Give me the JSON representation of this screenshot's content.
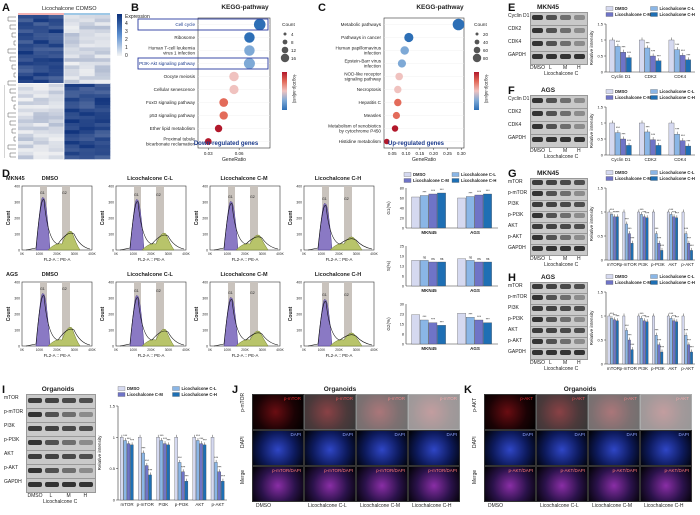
{
  "panels": {
    "A": {
      "letter": "A",
      "groups": [
        "Licochalcone C",
        "DMSO"
      ],
      "scale_label": "Expression",
      "scale_ticks": [
        "4",
        "3",
        "2",
        "1",
        "0"
      ]
    },
    "B": {
      "letter": "B",
      "title": "KEGG-pathway",
      "xlabel": "GeneRatio",
      "caption": "Down-regulated genes",
      "terms": [
        "Cell cycle",
        "Ribosome",
        "Human T-cell leukemia virus 1 infection",
        "PI3K-Akt signaling pathway",
        "Oocyte meiosis",
        "Cellular senescence",
        "FoxO signaling pathway",
        "p53 signaling pathway",
        "Ether lipid metabolism",
        "Proximal tubule bicarbonate reclamation"
      ],
      "count_label": "Count",
      "count_ticks": [
        "4",
        "8",
        "12",
        "16"
      ],
      "p_label": "-log10(p.adjust)"
    },
    "C": {
      "letter": "C",
      "title": "KEGG-pathway",
      "xlabel": "GeneRatio",
      "caption": "Up-regulated genes",
      "terms": [
        "Metabolic pathways",
        "Pathways in cancer",
        "Human papillomavirus infection",
        "Epstein-Barr virus infection",
        "NOD-like receptor signaling pathway",
        "Necroptosis",
        "Hepatitis C",
        "Measles",
        "Metabolism of xenobiotics by cytochrome P450",
        "Histidine metabolism"
      ],
      "count_label": "Count",
      "count_ticks": [
        "20",
        "40",
        "60",
        "80"
      ],
      "p_label": "-log10(p.adjust)"
    },
    "D": {
      "letter": "D",
      "conditions": [
        "DMSO",
        "Licochalcone C-L",
        "Licochalcone C-M",
        "Licochalcone C-H"
      ],
      "cells": [
        "MKN45",
        "AGS"
      ],
      "xlabel": "FL2-A :: PE-A",
      "ylabel": "Count",
      "bar_ylabels": [
        "G1(%)",
        "S(%)",
        "G2(%)"
      ]
    },
    "E": {
      "letter": "E",
      "cell": "MKN45",
      "rows": [
        "Cyclin D1",
        "CDK2",
        "CDK4",
        "GAPDH"
      ],
      "lanes": [
        "DMSO",
        "L",
        "M",
        "H"
      ],
      "treatment": "Licochalcone C",
      "ylabel": "Relative intensity"
    },
    "F": {
      "letter": "F",
      "cell": "AGS",
      "rows": [
        "Cyclin D1",
        "CDK2",
        "CDK4",
        "GAPDH"
      ],
      "lanes": [
        "DMSO",
        "L",
        "M",
        "H"
      ],
      "treatment": "Licochalcone C",
      "ylabel": "Relative intensity"
    },
    "G": {
      "letter": "G",
      "cell": "MKN45",
      "rows": [
        "mTOR",
        "p-mTOR",
        "PI3K",
        "p-PI3K",
        "AKT",
        "p-AKT",
        "GAPDH"
      ],
      "lanes": [
        "DMSO",
        "L",
        "M",
        "H"
      ],
      "treatment": "Licochalcone C",
      "ylabel": "Relative intensity"
    },
    "H": {
      "letter": "H",
      "cell": "AGS",
      "rows": [
        "mTOR",
        "p-mTOR",
        "PI3K",
        "p-PI3K",
        "AKT",
        "p-AKT",
        "GAPDH"
      ],
      "lanes": [
        "DMSO",
        "L",
        "M",
        "H"
      ],
      "treatment": "Licochalcone C",
      "ylabel": "Relative intensity"
    },
    "I": {
      "letter": "I",
      "cell": "Organoids",
      "rows": [
        "mTOR",
        "p-mTOR",
        "PI3K",
        "p-PI3K",
        "AKT",
        "p-AKT",
        "GAPDH"
      ],
      "lanes": [
        "DMSO",
        "L",
        "M",
        "H"
      ],
      "treatment": "Licochalcone C",
      "ylabel": "Relative intensity"
    },
    "J": {
      "letter": "J",
      "title": "Organoids",
      "row_labels": [
        "p-mTOR",
        "DAPI",
        "Merge"
      ],
      "col_labels": [
        "DMSO",
        "Licochalcone C-L",
        "Licochalcone C-M",
        "Licochalcone C-H"
      ],
      "stain": "p-mTOR",
      "nuc": "DAPI",
      "merge": "p-mTOR/DAPI"
    },
    "K": {
      "letter": "K",
      "title": "Organoids",
      "row_labels": [
        "p-AKT",
        "DAPI",
        "Merge"
      ],
      "col_labels": [
        "DMSO",
        "Licochalcone C-L",
        "Licochalcone C-M",
        "Licochalcone C-H"
      ],
      "stain": "p-AKT",
      "nuc": "DAPI",
      "merge": "p-AKT/DAPI"
    }
  },
  "legend": [
    "DMSO",
    "Licochalcone C-L",
    "Licochalcone C-M",
    "Licochalcone C-H"
  ],
  "colors": {
    "dmso": "#d5d9f0",
    "low": "#8ab6e6",
    "mid": "#6f74c7",
    "high": "#1e6fb4",
    "hm_high": "#0b2f7a",
    "hm_low": "#f5f5f5",
    "red_stain": "#e0282c",
    "blue_stain": "#2438b8"
  },
  "chart_data": [
    {
      "type": "scatter",
      "title": "KEGG-pathway",
      "xlabel": "GeneRatio",
      "panel": "B",
      "categories": [
        "Cell cycle",
        "Ribosome",
        "Human T-cell leukemia virus 1 infection",
        "PI3K-Akt signaling pathway",
        "Oocyte meiosis",
        "Cellular senescence",
        "FoxO signaling pathway",
        "p53 signaling pathway",
        "Ether lipid metabolism",
        "Proximal tubule bicarbonate reclamation"
      ],
      "x": [
        0.08,
        0.07,
        0.07,
        0.07,
        0.055,
        0.055,
        0.045,
        0.045,
        0.04,
        0.03
      ],
      "size": [
        16,
        12,
        12,
        14,
        9,
        8,
        7,
        6,
        4,
        3
      ],
      "xticks": [
        "0.03",
        "0.06"
      ]
    },
    {
      "type": "scatter",
      "title": "KEGG-pathway",
      "xlabel": "GeneRatio",
      "panel": "C",
      "categories": [
        "Metabolic pathways",
        "Pathways in cancer",
        "Human papillomavirus infection",
        "Epstein-Barr virus infection",
        "NOD-like receptor signaling pathway",
        "Necroptosis",
        "Hepatitis C",
        "Measles",
        "Metabolism of xenobiotics by cytochrome P450",
        "Histidine metabolism"
      ],
      "x": [
        0.29,
        0.11,
        0.095,
        0.085,
        0.075,
        0.07,
        0.07,
        0.065,
        0.06,
        0.03
      ],
      "size": [
        80,
        40,
        32,
        28,
        22,
        20,
        20,
        18,
        12,
        6
      ],
      "xticks": [
        "0.05",
        "0.10",
        "0.15",
        "0.20",
        "0.25",
        "0.30"
      ]
    },
    {
      "type": "bar",
      "panel": "E",
      "ylabel": "Relative intensity",
      "categories": [
        "Cyclin D1",
        "CDK2",
        "CDK4"
      ],
      "series": [
        {
          "name": "DMSO",
          "values": [
            1.0,
            1.0,
            1.0
          ]
        },
        {
          "name": "Licochalcone C-L",
          "values": [
            0.8,
            0.75,
            0.7
          ]
        },
        {
          "name": "Licochalcone C-M",
          "values": [
            0.62,
            0.5,
            0.52
          ]
        },
        {
          "name": "Licochalcone C-H",
          "values": [
            0.45,
            0.35,
            0.38
          ]
        }
      ],
      "ylim": [
        0,
        1.5
      ]
    },
    {
      "type": "bar",
      "panel": "F",
      "ylabel": "Relative intensity",
      "categories": [
        "Cyclin D1",
        "CDK2",
        "CDK4"
      ],
      "series": [
        {
          "name": "DMSO",
          "values": [
            1.0,
            1.0,
            1.0
          ]
        },
        {
          "name": "Licochalcone C-L",
          "values": [
            0.7,
            0.72,
            0.65
          ]
        },
        {
          "name": "Licochalcone C-M",
          "values": [
            0.5,
            0.48,
            0.45
          ]
        },
        {
          "name": "Licochalcone C-H",
          "values": [
            0.3,
            0.3,
            0.28
          ]
        }
      ],
      "ylim": [
        0,
        1.5
      ]
    },
    {
      "type": "bar",
      "panel": "G",
      "ylabel": "Relative intensity",
      "categories": [
        "mTOR",
        "p-mTOR",
        "PI3K",
        "p-PI3K",
        "AKT",
        "p-AKT"
      ],
      "series": [
        {
          "name": "DMSO",
          "values": [
            1.0,
            1.0,
            1.0,
            1.0,
            1.0,
            1.0
          ]
        },
        {
          "name": "Licochalcone C-L",
          "values": [
            0.95,
            0.75,
            0.95,
            0.55,
            0.95,
            0.55
          ]
        },
        {
          "name": "Licochalcone C-M",
          "values": [
            0.9,
            0.55,
            0.9,
            0.35,
            0.9,
            0.35
          ]
        },
        {
          "name": "Licochalcone C-H",
          "values": [
            0.9,
            0.35,
            0.88,
            0.2,
            0.88,
            0.2
          ]
        }
      ],
      "ylim": [
        0,
        1.5
      ]
    },
    {
      "type": "bar",
      "panel": "H",
      "ylabel": "Relative intensity",
      "categories": [
        "mTOR",
        "p-mTOR",
        "PI3K",
        "p-PI3K",
        "AKT",
        "p-AKT"
      ],
      "series": [
        {
          "name": "DMSO",
          "values": [
            1.0,
            1.0,
            1.0,
            1.0,
            1.0,
            1.0
          ]
        },
        {
          "name": "Licochalcone C-L",
          "values": [
            0.95,
            0.7,
            0.95,
            0.6,
            0.95,
            0.6
          ]
        },
        {
          "name": "Licochalcone C-M",
          "values": [
            0.92,
            0.5,
            0.9,
            0.4,
            0.9,
            0.4
          ]
        },
        {
          "name": "Licochalcone C-H",
          "values": [
            0.9,
            0.3,
            0.88,
            0.25,
            0.88,
            0.25
          ]
        }
      ],
      "ylim": [
        0,
        1.5
      ]
    },
    {
      "type": "bar",
      "panel": "I",
      "ylabel": "Relative intensity",
      "categories": [
        "mTOR",
        "p-mTOR",
        "PI3K",
        "p-PI3K",
        "AKT",
        "p-AKT"
      ],
      "series": [
        {
          "name": "DMSO",
          "values": [
            1.0,
            1.0,
            1.0,
            1.0,
            1.0,
            1.0
          ]
        },
        {
          "name": "Licochalcone C-L",
          "values": [
            0.95,
            0.75,
            0.95,
            0.6,
            0.95,
            0.6
          ]
        },
        {
          "name": "Licochalcone C-M",
          "values": [
            0.9,
            0.55,
            0.9,
            0.45,
            0.9,
            0.45
          ]
        },
        {
          "name": "Licochalcone C-H",
          "values": [
            0.88,
            0.4,
            0.88,
            0.3,
            0.88,
            0.3
          ]
        }
      ],
      "ylim": [
        0,
        1.5
      ]
    },
    {
      "type": "bar",
      "panel": "D-G1",
      "ylabel": "G1(%)",
      "categories": [
        "MKN45",
        "AGS"
      ],
      "series": [
        {
          "name": "DMSO",
          "values": [
            62,
            60
          ]
        },
        {
          "name": "Licochalcone C-L",
          "values": [
            65,
            63
          ]
        },
        {
          "name": "Licochalcone C-M",
          "values": [
            68,
            66
          ]
        },
        {
          "name": "Licochalcone C-H",
          "values": [
            70,
            68
          ]
        }
      ],
      "ylim": [
        0,
        80
      ]
    },
    {
      "type": "bar",
      "panel": "D-S",
      "ylabel": "S(%)",
      "categories": [
        "MKN45",
        "AGS"
      ],
      "series": [
        {
          "name": "DMSO",
          "values": [
            16,
            17
          ]
        },
        {
          "name": "Licochalcone C-L",
          "values": [
            16,
            16
          ]
        },
        {
          "name": "Licochalcone C-M",
          "values": [
            15,
            15
          ]
        },
        {
          "name": "Licochalcone C-H",
          "values": [
            15,
            15
          ]
        }
      ],
      "ylim": [
        0,
        25
      ]
    },
    {
      "type": "bar",
      "panel": "D-G2",
      "ylabel": "G2(%)",
      "categories": [
        "MKN45",
        "AGS"
      ],
      "series": [
        {
          "name": "DMSO",
          "values": [
            22,
            23
          ]
        },
        {
          "name": "Licochalcone C-L",
          "values": [
            18,
            20
          ]
        },
        {
          "name": "Licochalcone C-M",
          "values": [
            16,
            18
          ]
        },
        {
          "name": "Licochalcone C-H",
          "values": [
            14,
            16
          ]
        }
      ],
      "ylim": [
        0,
        30
      ]
    }
  ]
}
